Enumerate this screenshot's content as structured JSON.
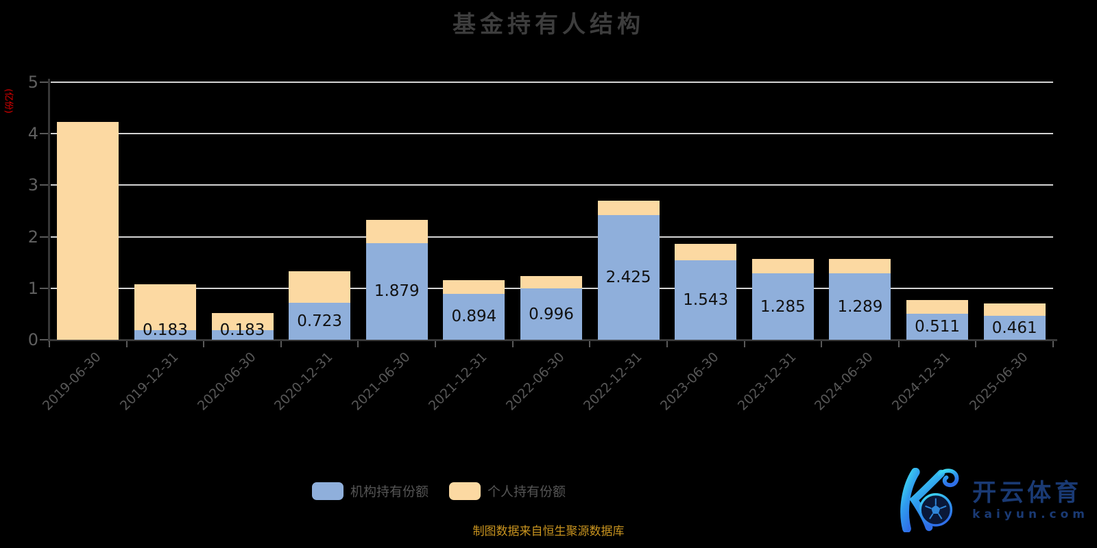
{
  "title": "基金持有人结构",
  "y_axis": {
    "unit_label": "(亿份)",
    "tick_labels": [
      "0",
      "1",
      "2",
      "3",
      "4",
      "5"
    ]
  },
  "legend": {
    "items": [
      {
        "label": "机构持有份额",
        "color": "#8fafdb"
      },
      {
        "label": "个人持有份额",
        "color": "#fcd9a2"
      }
    ]
  },
  "source_note": "制图数据来自恒生聚源数据库",
  "logo": {
    "brand": "开云体育",
    "domain": "kaiyun.com",
    "mark": "kaiyun-k-soccer-ball-logo"
  },
  "chart_data": {
    "type": "bar",
    "stacked": true,
    "title": "基金持有人结构",
    "ylabel": "(亿份)",
    "ylim": [
      0,
      5
    ],
    "grid": true,
    "legend_position": "bottom",
    "categories": [
      "2019-06-30",
      "2019-12-31",
      "2020-06-30",
      "2020-12-31",
      "2021-06-30",
      "2021-12-31",
      "2022-06-30",
      "2022-12-31",
      "2023-06-30",
      "2023-12-31",
      "2024-06-30",
      "2024-12-31",
      "2025-06-30"
    ],
    "series": [
      {
        "name": "机构持有份额",
        "color": "#8fafdb",
        "values": [
          0,
          0.183,
          0.183,
          0.723,
          1.879,
          0.894,
          0.996,
          2.425,
          1.543,
          1.285,
          1.289,
          0.511,
          0.461
        ],
        "data_labels": [
          "",
          "0.183",
          "0.183",
          "0.723",
          "1.879",
          "0.894",
          "0.996",
          "2.425",
          "1.543",
          "1.285",
          "1.289",
          "0.511",
          "0.461"
        ]
      },
      {
        "name": "个人持有份额",
        "color": "#fcd9a2",
        "values": [
          4.23,
          0.89,
          0.33,
          0.61,
          0.45,
          0.26,
          0.24,
          0.27,
          0.32,
          0.29,
          0.28,
          0.26,
          0.24
        ],
        "estimated": true
      }
    ]
  }
}
